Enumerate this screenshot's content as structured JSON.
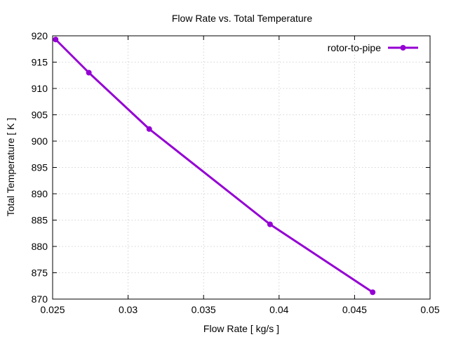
{
  "chart_data": {
    "type": "line",
    "title": "Flow Rate vs. Total Temperature",
    "xlabel": "Flow Rate [ kg/s ]",
    "ylabel": "Total Temperature [ K ]",
    "xlim": [
      0.025,
      0.05
    ],
    "ylim": [
      870,
      920
    ],
    "xticks": [
      0.025,
      0.03,
      0.035,
      0.04,
      0.045,
      0.05
    ],
    "xtick_labels": [
      "0.025",
      "0.03",
      "0.035",
      "0.04",
      "0.045",
      "0.05"
    ],
    "yticks": [
      870,
      875,
      880,
      885,
      890,
      895,
      900,
      905,
      910,
      915,
      920
    ],
    "ytick_labels": [
      "870",
      "875",
      "880",
      "885",
      "890",
      "895",
      "900",
      "905",
      "910",
      "915",
      "920"
    ],
    "grid": true,
    "legend_position": "top-right",
    "series": [
      {
        "name": "rotor-to-pipe",
        "color": "#9400d3",
        "x": [
          0.0252,
          0.0274,
          0.0314,
          0.0394,
          0.0462
        ],
        "y": [
          919.3,
          913.0,
          902.3,
          884.2,
          871.3
        ]
      }
    ]
  }
}
